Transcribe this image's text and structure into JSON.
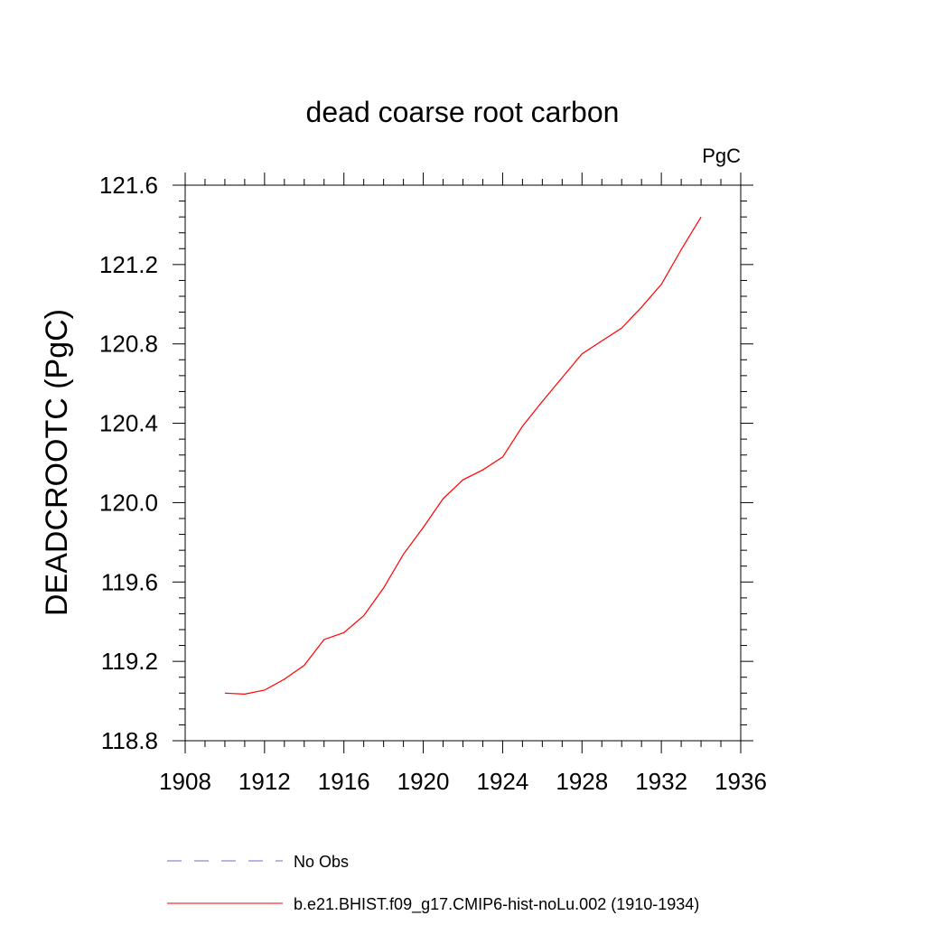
{
  "chart_data": {
    "type": "line",
    "title": "dead coarse root carbon",
    "units_label": "PgC",
    "xlabel": "",
    "ylabel": "DEADCROOTC  (PgC)",
    "xlim": [
      1908,
      1936
    ],
    "ylim": [
      118.8,
      121.6
    ],
    "x_ticks": [
      1908,
      1912,
      1916,
      1920,
      1924,
      1928,
      1932,
      1936
    ],
    "x_tick_labels": [
      "1908",
      "1912",
      "1916",
      "1920",
      "1924",
      "1928",
      "1932",
      "1936"
    ],
    "y_ticks": [
      118.8,
      119.2,
      119.6,
      120.0,
      120.4,
      120.8,
      121.2,
      121.6
    ],
    "y_tick_labels": [
      "118.8",
      "119.2",
      "119.6",
      "120.0",
      "120.4",
      "120.8",
      "121.2",
      "121.6"
    ],
    "grid": false,
    "legend_position": "bottom",
    "series": [
      {
        "name": "No Obs",
        "color": "#6b6bd6",
        "dash": "dashed",
        "x": [],
        "y": []
      },
      {
        "name": "b.e21.BHIST.f09_g17.CMIP6-hist-noLu.002 (1910-1934)",
        "color": "#ff0000",
        "dash": "solid",
        "x": [
          1910,
          1911,
          1912,
          1913,
          1914,
          1915,
          1916,
          1917,
          1918,
          1919,
          1920,
          1921,
          1922,
          1923,
          1924,
          1925,
          1926,
          1927,
          1928,
          1929,
          1930,
          1931,
          1932,
          1933,
          1934
        ],
        "y": [
          119.04,
          119.035,
          119.055,
          119.11,
          119.18,
          119.31,
          119.345,
          119.43,
          119.57,
          119.74,
          119.875,
          120.02,
          120.115,
          120.165,
          120.23,
          120.385,
          120.51,
          120.63,
          120.75,
          120.815,
          120.88,
          120.985,
          121.1,
          121.275,
          121.44
        ]
      }
    ]
  }
}
